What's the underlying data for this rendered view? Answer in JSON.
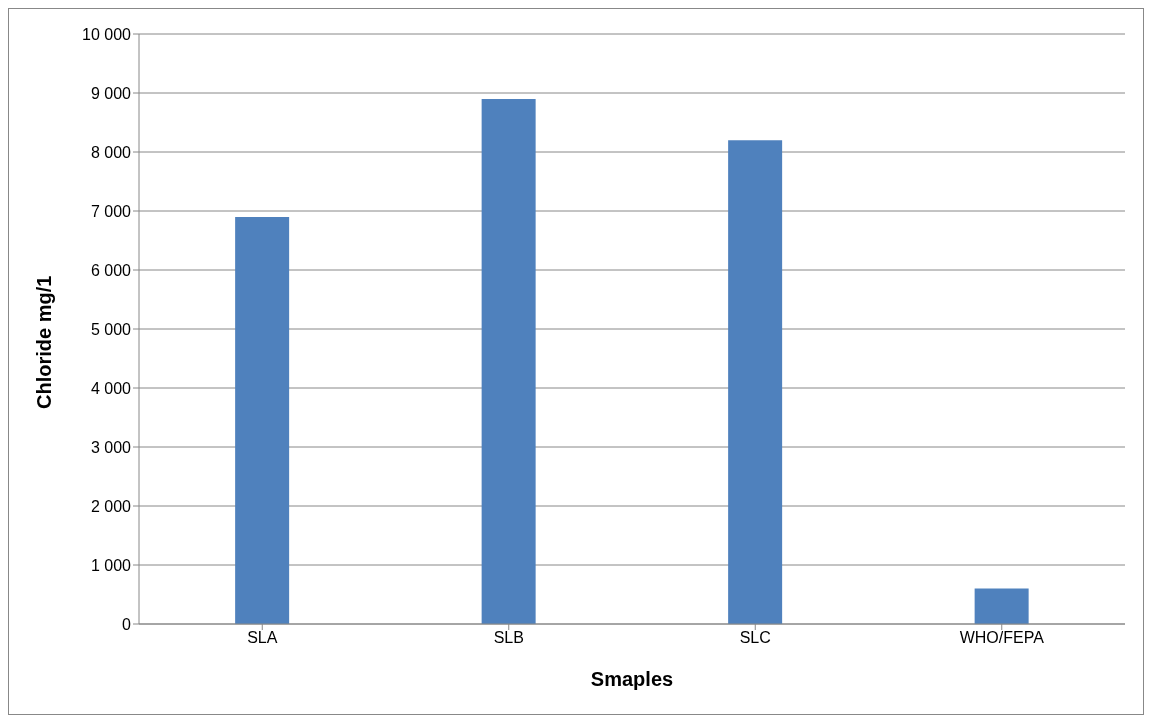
{
  "chart_data": {
    "type": "bar",
    "xlabel": "Smaples",
    "ylabel": "Chloride mg/1",
    "categories": [
      "SLA",
      "SLB",
      "SLC",
      "WHO/FEPA"
    ],
    "values": [
      6900,
      8900,
      8200,
      600
    ],
    "color": "#4f81bd",
    "ylim": [
      0,
      10000
    ],
    "yticks": [
      0,
      {
        "value": 1000,
        "label": "1 000"
      },
      {
        "value": 2000,
        "label": "2 000"
      },
      {
        "value": 3000,
        "label": "3 000"
      },
      {
        "value": 4000,
        "label": "4 000"
      },
      {
        "value": 5000,
        "label": "5 000"
      },
      {
        "value": 6000,
        "label": "6 000"
      },
      {
        "value": 7000,
        "label": "7 000"
      },
      {
        "value": 8000,
        "label": "8 000"
      },
      {
        "value": 9000,
        "label": "9 000"
      },
      {
        "value": 10000,
        "label": "10 000"
      }
    ],
    "grid": "y",
    "legend": false
  }
}
